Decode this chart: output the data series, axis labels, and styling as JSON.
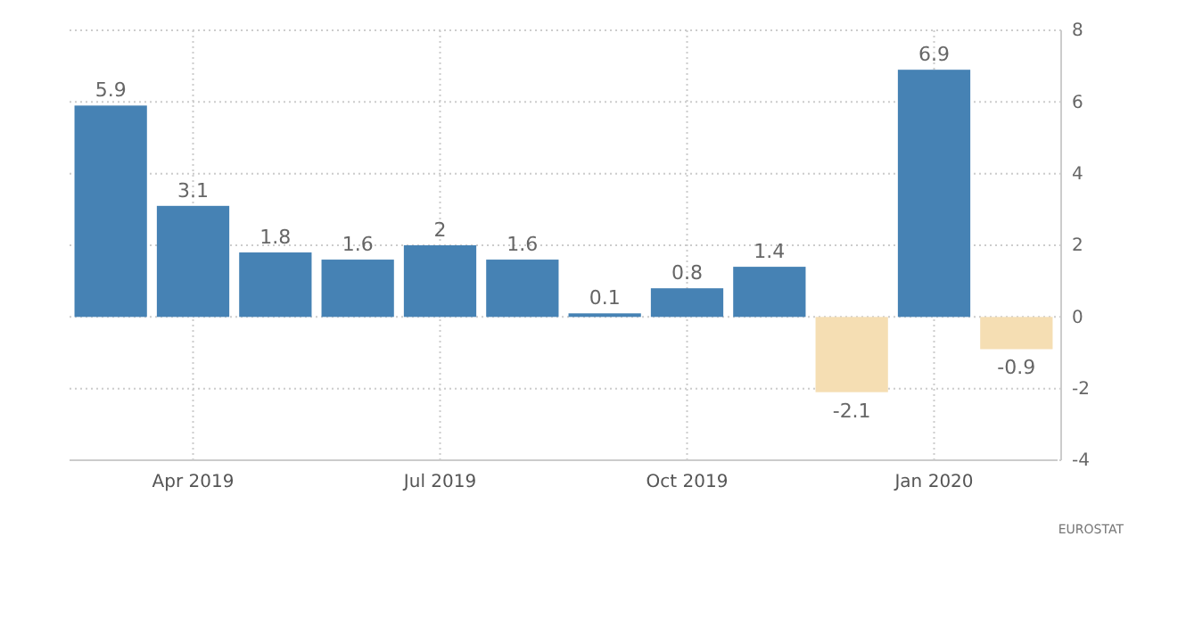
{
  "chart_data": {
    "type": "bar",
    "categories": [
      null,
      "Apr 2019",
      null,
      null,
      "Jul 2019",
      null,
      null,
      "Oct 2019",
      null,
      null,
      "Jan 2020",
      null
    ],
    "values": [
      5.9,
      3.1,
      1.8,
      1.6,
      2,
      1.6,
      0.1,
      0.8,
      1.4,
      -2.1,
      6.9,
      -0.9
    ],
    "colors": [
      "#4682b4",
      "#4682b4",
      "#4682b4",
      "#4682b4",
      "#4682b4",
      "#4682b4",
      "#4682b4",
      "#4682b4",
      "#4682b4",
      "#f5deb3",
      "#4682b4",
      "#f5deb3"
    ],
    "ylim": [
      -4,
      8
    ],
    "yticks": [
      -4,
      -2,
      0,
      2,
      4,
      6,
      8
    ],
    "grid": true,
    "data_labels": true,
    "annotations": [
      "EUROSTAT"
    ]
  }
}
